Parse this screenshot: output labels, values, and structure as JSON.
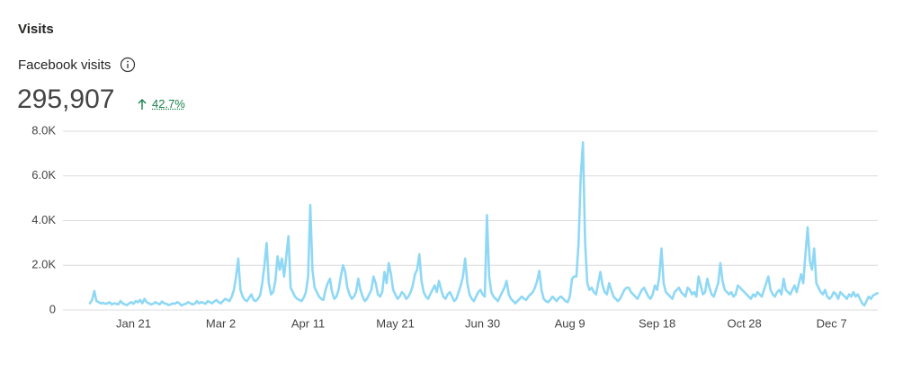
{
  "header": {
    "title": "Visits",
    "metric_label": "Facebook visits",
    "total": "295,907",
    "change": "42.7%"
  },
  "chart_data": {
    "type": "line",
    "categories": [
      null,
      null,
      null,
      null,
      null,
      null,
      null,
      null,
      null,
      null,
      null,
      null,
      null,
      null,
      null,
      null,
      null,
      null,
      null,
      null,
      "Jan 21",
      null,
      null,
      null,
      null,
      null,
      null,
      null,
      null,
      null,
      null,
      null,
      null,
      null,
      null,
      null,
      null,
      null,
      null,
      null,
      null,
      null,
      null,
      null,
      null,
      null,
      null,
      null,
      null,
      null,
      null,
      null,
      null,
      null,
      null,
      null,
      null,
      null,
      null,
      null,
      "Mar 2",
      null,
      null,
      null,
      null,
      null,
      null,
      null,
      null,
      null,
      null,
      null,
      null,
      null,
      null,
      null,
      null,
      null,
      null,
      null,
      null,
      null,
      null,
      null,
      null,
      null,
      null,
      null,
      null,
      null,
      null,
      null,
      null,
      null,
      null,
      null,
      null,
      null,
      null,
      null,
      "Apr 11",
      null,
      null,
      null,
      null,
      null,
      null,
      null,
      null,
      null,
      null,
      null,
      null,
      null,
      null,
      null,
      null,
      null,
      null,
      null,
      null,
      null,
      null,
      null,
      null,
      null,
      null,
      null,
      null,
      null,
      null,
      null,
      null,
      null,
      null,
      null,
      null,
      null,
      null,
      null,
      "May 21",
      null,
      null,
      null,
      null,
      null,
      null,
      null,
      null,
      null,
      null,
      null,
      null,
      null,
      null,
      null,
      null,
      null,
      null,
      null,
      null,
      null,
      null,
      null,
      null,
      null,
      null,
      null,
      null,
      null,
      null,
      null,
      null,
      null,
      null,
      null,
      null,
      null,
      null,
      null,
      "Jun 30",
      null,
      null,
      null,
      null,
      null,
      null,
      null,
      null,
      null,
      null,
      null,
      null,
      null,
      null,
      null,
      null,
      null,
      null,
      null,
      null,
      null,
      null,
      null,
      null,
      null,
      null,
      null,
      null,
      null,
      null,
      null,
      null,
      null,
      null,
      null,
      null,
      null,
      null,
      null,
      "Aug 9",
      null,
      null,
      null,
      null,
      null,
      null,
      null,
      null,
      null,
      null,
      null,
      null,
      null,
      null,
      null,
      null,
      null,
      null,
      null,
      null,
      null,
      null,
      null,
      null,
      null,
      null,
      null,
      null,
      null,
      null,
      null,
      null,
      null,
      null,
      null,
      null,
      null,
      null,
      null,
      "Sep 18",
      null,
      null,
      null,
      null,
      null,
      null,
      null,
      null,
      null,
      null,
      null,
      null,
      null,
      null,
      null,
      null,
      null,
      null,
      null,
      null,
      null,
      null,
      null,
      null,
      null,
      null,
      null,
      null,
      null,
      null,
      null,
      null,
      null,
      null,
      null,
      null,
      null,
      null,
      null,
      "Oct 28",
      null,
      null,
      null,
      null,
      null,
      null,
      null,
      null,
      null,
      null,
      null,
      null,
      null,
      null,
      null,
      null,
      null,
      null,
      null,
      null,
      null,
      null,
      null,
      null,
      null,
      null,
      null,
      null,
      null,
      null,
      null,
      null,
      null,
      null,
      null,
      null,
      null,
      null,
      null,
      "Dec 7",
      null,
      null,
      null,
      null,
      null,
      null,
      null,
      null,
      null,
      null,
      null,
      null,
      null,
      null,
      null,
      null,
      null,
      null,
      null,
      null,
      null
    ],
    "series": [
      {
        "color": "#8fd8f5",
        "values": [
          300,
          450,
          850,
          400,
          350,
          300,
          320,
          280,
          300,
          350,
          250,
          300,
          280,
          250,
          400,
          300,
          250,
          220,
          300,
          350,
          280,
          400,
          350,
          450,
          300,
          500,
          350,
          300,
          250,
          280,
          350,
          300,
          250,
          380,
          300,
          280,
          220,
          250,
          300,
          280,
          350,
          300,
          200,
          250,
          280,
          350,
          300,
          250,
          280,
          400,
          300,
          350,
          320,
          280,
          400,
          350,
          300,
          380,
          450,
          350,
          300,
          400,
          500,
          450,
          400,
          600,
          900,
          1500,
          2300,
          900,
          600,
          450,
          400,
          550,
          700,
          450,
          400,
          500,
          650,
          1200,
          2000,
          3000,
          1200,
          700,
          800,
          1300,
          2400,
          1800,
          2300,
          1500,
          2400,
          3300,
          1000,
          800,
          600,
          500,
          450,
          400,
          550,
          800,
          1500,
          4700,
          1800,
          1000,
          800,
          600,
          500,
          450,
          900,
          1200,
          1400,
          800,
          500,
          600,
          900,
          1500,
          2000,
          1700,
          1000,
          700,
          500,
          600,
          800,
          1400,
          900,
          600,
          400,
          500,
          700,
          900,
          1500,
          1200,
          700,
          600,
          800,
          1700,
          1200,
          2100,
          1600,
          900,
          700,
          500,
          600,
          800,
          700,
          500,
          600,
          800,
          1100,
          1600,
          1800,
          2500,
          1300,
          800,
          600,
          500,
          700,
          900,
          1100,
          800,
          1300,
          900,
          600,
          500,
          700,
          800,
          600,
          400,
          500,
          800,
          1100,
          1500,
          2300,
          1200,
          700,
          500,
          400,
          600,
          800,
          900,
          700,
          600,
          4250,
          1500,
          800,
          600,
          500,
          400,
          600,
          800,
          1000,
          1300,
          700,
          500,
          400,
          300,
          400,
          500,
          600,
          500,
          450,
          600,
          700,
          800,
          1000,
          1300,
          1750,
          900,
          500,
          400,
          350,
          450,
          600,
          500,
          400,
          550,
          600,
          500,
          400,
          350,
          600,
          1400,
          1500,
          1500,
          3000,
          6000,
          7500,
          3000,
          1200,
          900,
          1000,
          800,
          700,
          1200,
          1700,
          1100,
          800,
          700,
          1200,
          900,
          600,
          500,
          400,
          500,
          700,
          900,
          1000,
          1000,
          800,
          700,
          600,
          500,
          700,
          900,
          1000,
          800,
          600,
          500,
          700,
          1100,
          900,
          1500,
          2750,
          1200,
          800,
          700,
          600,
          500,
          800,
          900,
          1000,
          800,
          700,
          600,
          1000,
          900,
          700,
          800,
          600,
          1500,
          1100,
          700,
          800,
          1400,
          1000,
          700,
          600,
          900,
          1200,
          2100,
          1300,
          900,
          800,
          700,
          800,
          600,
          700,
          1100,
          1000,
          900,
          800,
          700,
          600,
          500,
          700,
          600,
          800,
          700,
          600,
          900,
          1200,
          1500,
          900,
          700,
          600,
          800,
          900,
          700,
          1400,
          900,
          800,
          700,
          900,
          1100,
          800,
          1200,
          1600,
          1200,
          2500,
          3700,
          2200,
          1800,
          2750,
          1200,
          1000,
          800,
          700,
          900,
          600,
          500,
          600,
          800,
          700,
          500,
          800,
          700,
          600,
          500,
          700,
          600,
          800,
          600,
          700,
          500,
          300,
          200,
          400,
          600,
          500,
          650,
          700,
          750
        ]
      }
    ],
    "ylim": [
      0,
      8000
    ],
    "yticks": [
      0,
      {
        "value": 2000,
        "label": "2.0K"
      },
      {
        "value": 4000,
        "label": "4.0K"
      },
      {
        "value": 6000,
        "label": "6.0K"
      },
      {
        "value": 8000,
        "label": "8.0K"
      }
    ],
    "grid": true
  }
}
